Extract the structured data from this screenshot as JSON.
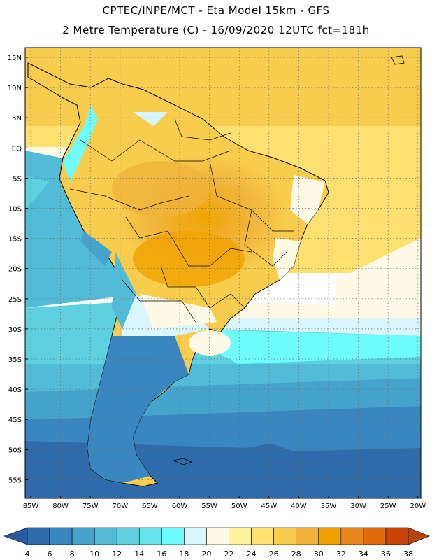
{
  "header": {
    "line1": "CPTEC/INPE/MCT -  Eta Model 15km - GFS",
    "line2": "2 Metre Temperature (C) - 16/09/2020 12UTC fct=181h"
  },
  "map": {
    "lat_labels": [
      "15N",
      "10N",
      "5N",
      "EQ",
      "5S",
      "10S",
      "15S",
      "20S",
      "25S",
      "30S",
      "35S",
      "40S",
      "45S",
      "50S",
      "55S"
    ],
    "lon_labels": [
      "85W",
      "80W",
      "75W",
      "70W",
      "65W",
      "60W",
      "55W",
      "50W",
      "45W",
      "40W",
      "35W",
      "30W",
      "25W",
      "20W"
    ]
  },
  "colorbar": {
    "labels": [
      "4",
      "6",
      "8",
      "10",
      "12",
      "14",
      "16",
      "18",
      "20",
      "22",
      "24",
      "26",
      "28",
      "30",
      "32",
      "34",
      "36",
      "38"
    ],
    "colors": [
      "#2f6aaa",
      "#3a86c0",
      "#46a4cc",
      "#52bcd8",
      "#5ed0e0",
      "#66e4ea",
      "#6efcfc",
      "#d8f6fc",
      "#fefae6",
      "#fef4a0",
      "#fee070",
      "#f8cc4c",
      "#f0b43c",
      "#f0a200",
      "#e8841c",
      "#e06c0c",
      "#c84406"
    ],
    "low_color": "#2a5a9e",
    "high_color": "#b4440c"
  }
}
